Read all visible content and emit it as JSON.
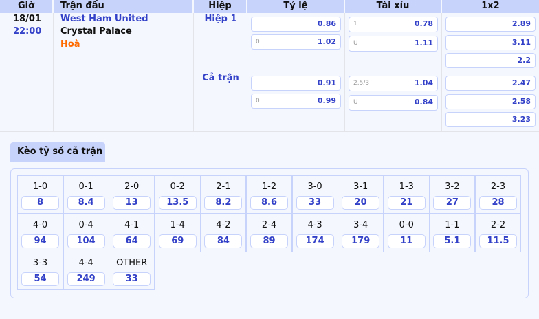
{
  "header": {
    "time": "Giờ",
    "match": "Trận đấu",
    "half": "Hiệp",
    "handicap": "Tỷ lệ",
    "over_under": "Tài xỉu",
    "x12": "1x2"
  },
  "match": {
    "date": "18/01",
    "time": "22:00",
    "home": "West Ham United",
    "away": "Crystal Palace",
    "draw": "Hoà"
  },
  "periods": [
    {
      "label": "Hiệp 1",
      "handicap": [
        {
          "line": "",
          "odds": "0.86"
        },
        {
          "line": "0",
          "odds": "1.02"
        }
      ],
      "over_under": [
        {
          "line": "1",
          "odds": "0.78"
        },
        {
          "line": "U",
          "odds": "1.11"
        }
      ],
      "x12": [
        "2.89",
        "3.11",
        "2.2"
      ]
    },
    {
      "label": "Cả trận",
      "handicap": [
        {
          "line": "",
          "odds": "0.91"
        },
        {
          "line": "0",
          "odds": "0.99"
        }
      ],
      "over_under": [
        {
          "line": "2.5/3",
          "odds": "1.04"
        },
        {
          "line": "U",
          "odds": "0.84"
        }
      ],
      "x12": [
        "2.47",
        "2.58",
        "3.23"
      ]
    }
  ],
  "correct_score": {
    "tab": "Kèo tỷ số cả trận",
    "items": [
      {
        "score": "1-0",
        "odds": "8"
      },
      {
        "score": "0-1",
        "odds": "8.4"
      },
      {
        "score": "2-0",
        "odds": "13"
      },
      {
        "score": "0-2",
        "odds": "13.5"
      },
      {
        "score": "2-1",
        "odds": "8.2"
      },
      {
        "score": "1-2",
        "odds": "8.6"
      },
      {
        "score": "3-0",
        "odds": "33"
      },
      {
        "score": "3-1",
        "odds": "20"
      },
      {
        "score": "1-3",
        "odds": "21"
      },
      {
        "score": "3-2",
        "odds": "27"
      },
      {
        "score": "2-3",
        "odds": "28"
      },
      {
        "score": "4-0",
        "odds": "94"
      },
      {
        "score": "0-4",
        "odds": "104"
      },
      {
        "score": "4-1",
        "odds": "64"
      },
      {
        "score": "1-4",
        "odds": "69"
      },
      {
        "score": "4-2",
        "odds": "84"
      },
      {
        "score": "2-4",
        "odds": "89"
      },
      {
        "score": "4-3",
        "odds": "174"
      },
      {
        "score": "3-4",
        "odds": "179"
      },
      {
        "score": "0-0",
        "odds": "11"
      },
      {
        "score": "1-1",
        "odds": "5.1"
      },
      {
        "score": "2-2",
        "odds": "11.5"
      },
      {
        "score": "3-3",
        "odds": "54"
      },
      {
        "score": "4-4",
        "odds": "249"
      },
      {
        "score": "OTHER",
        "odds": "33"
      }
    ]
  },
  "colors": {
    "accent": "#3341c8",
    "header_bg": "#c8d3fc",
    "draw": "#ff6a00",
    "bg": "#f4f7fe"
  }
}
